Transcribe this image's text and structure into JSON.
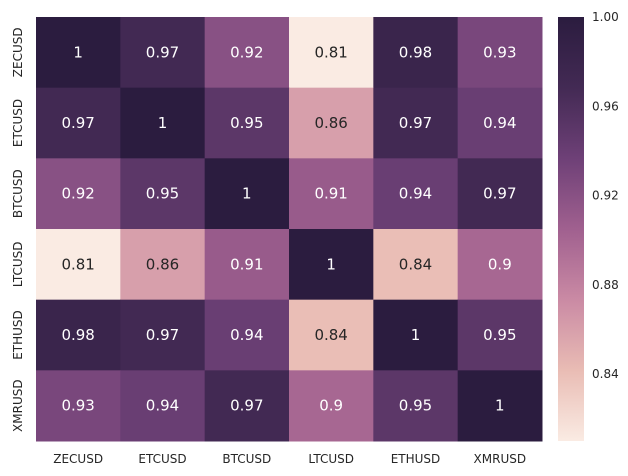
{
  "chart_data": {
    "type": "heatmap",
    "title": "",
    "xlabel": "",
    "ylabel": "",
    "x_categories": [
      "ZECUSD",
      "ETCUSD",
      "BTCUSD",
      "LTCUSD",
      "ETHUSD",
      "XMRUSD"
    ],
    "y_categories": [
      "ZECUSD",
      "ETCUSD",
      "BTCUSD",
      "LTCUSD",
      "ETHUSD",
      "XMRUSD"
    ],
    "values": [
      [
        1,
        0.97,
        0.92,
        0.81,
        0.98,
        0.93
      ],
      [
        0.97,
        1,
        0.95,
        0.86,
        0.97,
        0.94
      ],
      [
        0.92,
        0.95,
        1,
        0.91,
        0.94,
        0.97
      ],
      [
        0.81,
        0.86,
        0.91,
        1,
        0.84,
        0.9
      ],
      [
        0.98,
        0.97,
        0.94,
        0.84,
        1,
        0.95
      ],
      [
        0.93,
        0.94,
        0.97,
        0.9,
        0.95,
        1
      ]
    ],
    "annotations": [
      [
        "1",
        "0.97",
        "0.92",
        "0.81",
        "0.98",
        "0.93"
      ],
      [
        "0.97",
        "1",
        "0.95",
        "0.86",
        "0.97",
        "0.94"
      ],
      [
        "0.92",
        "0.95",
        "1",
        "0.91",
        "0.94",
        "0.97"
      ],
      [
        "0.81",
        "0.86",
        "0.91",
        "1",
        "0.84",
        "0.9"
      ],
      [
        "0.98",
        "0.97",
        "0.94",
        "0.84",
        "1",
        "0.95"
      ],
      [
        "0.93",
        "0.94",
        "0.97",
        "0.9",
        "0.95",
        "1"
      ]
    ],
    "color_range": [
      0.81,
      1.0
    ],
    "colorbar": {
      "ticks": [
        0.84,
        0.88,
        0.92,
        0.96,
        1.0
      ],
      "tick_labels": [
        "0.84",
        "0.88",
        "0.92",
        "0.96",
        "1.00"
      ],
      "placement": "right"
    },
    "colormap": [
      "#faebe3",
      "#e9bcb4",
      "#ca8aa4",
      "#a0608f",
      "#6e4077",
      "#432a54",
      "#2b1c3f"
    ],
    "grid": false
  }
}
